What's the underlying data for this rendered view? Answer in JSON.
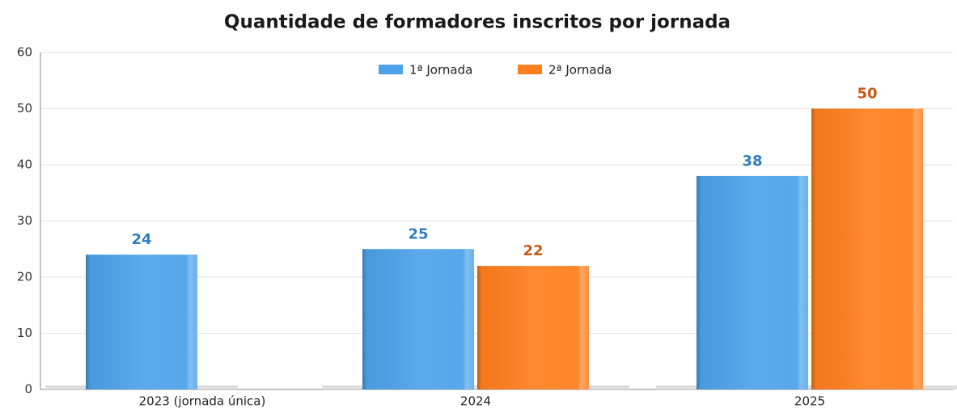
{
  "chart_data": {
    "type": "bar",
    "title": "Quantidade de formadores inscritos por jornada",
    "categories": [
      "2023 (jornada única)",
      "2024",
      "2025"
    ],
    "series": [
      {
        "name": "1ª Jornada",
        "color": "#4da3ea",
        "values": [
          24,
          25,
          38
        ]
      },
      {
        "name": "2ª Jornada",
        "color": "#ff7f1f",
        "values": [
          null,
          22,
          50
        ]
      }
    ],
    "ylim": [
      0,
      60
    ],
    "yticks": [
      0,
      10,
      20,
      30,
      40,
      50,
      60
    ],
    "grid": true,
    "legend": "top"
  }
}
